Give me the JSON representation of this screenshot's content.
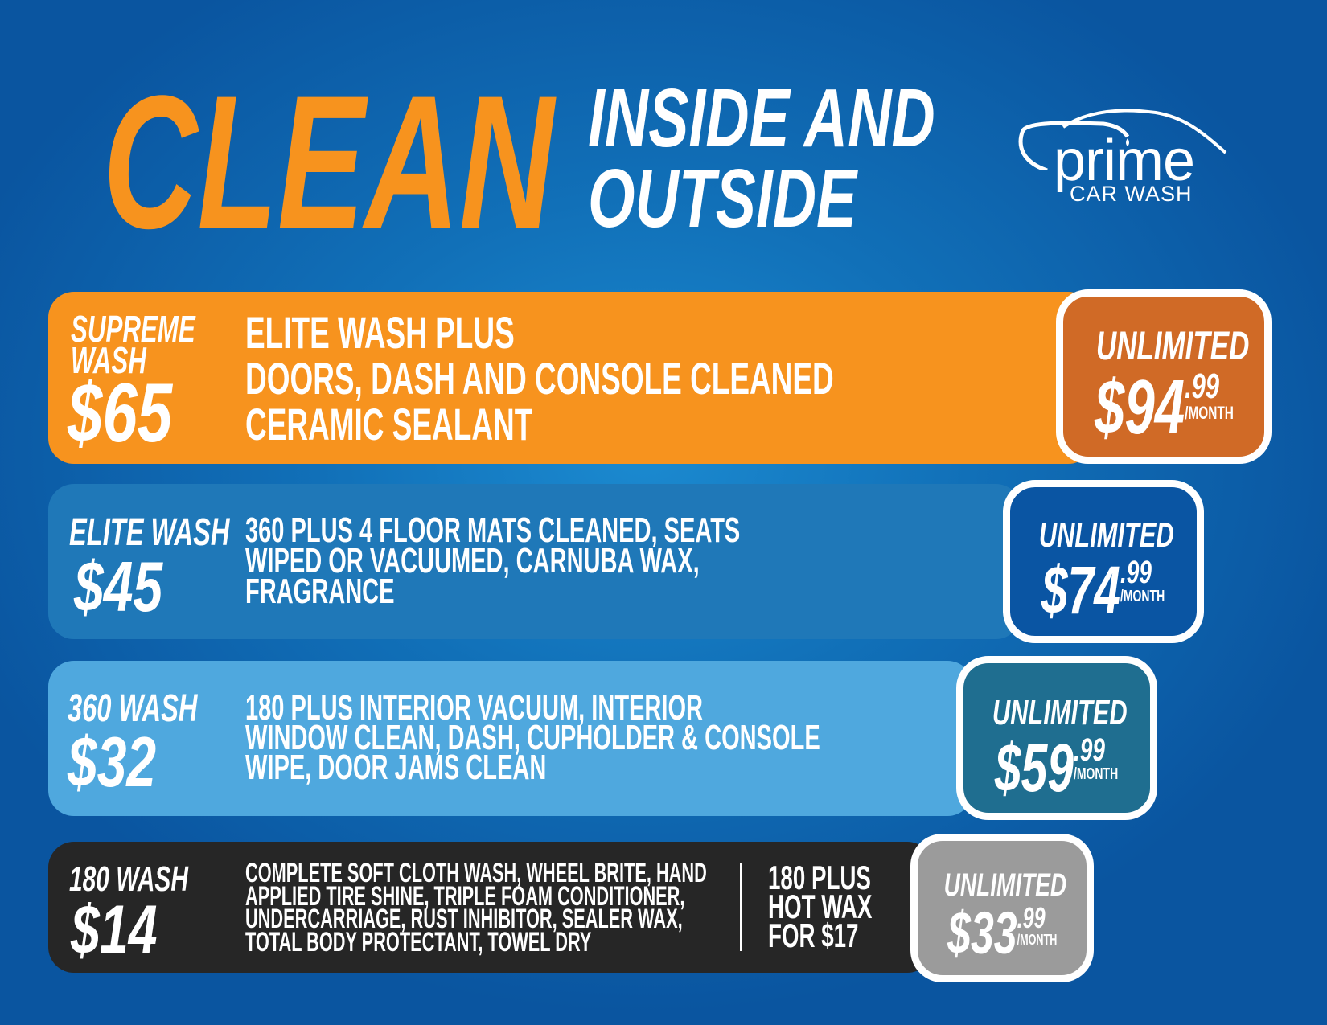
{
  "header": {
    "headline": "CLEAN",
    "subhead_line1": "INSIDE AND",
    "subhead_line2": "OUTSIDE"
  },
  "logo": {
    "word": "prime",
    "tagline": "CAR WASH",
    "icon": "car-silhouette-icon"
  },
  "colors": {
    "orange": "#f7931e",
    "badge_orange": "#d06a26",
    "elite_row": "#1f78b8",
    "elite_badge": "#0a55a3",
    "row_360": "#4fa8de",
    "badge_360": "#1f6e90",
    "row_180": "#262626",
    "badge_180": "#9b9b9b"
  },
  "packages": [
    {
      "name_line1": "SUPREME",
      "name_line2": "WASH",
      "price": "$65",
      "features": [
        "ELITE WASH PLUS",
        "DOORS, DASH AND CONSOLE CLEANED",
        "CERAMIC SEALANT"
      ],
      "unlimited": {
        "label": "UNLIMITED",
        "dollars": "$94",
        "cents": ".99",
        "period": "/MONTH"
      }
    },
    {
      "name_line1": "ELITE WASH",
      "price": "$45",
      "features": [
        "360 PLUS 4 FLOOR MATS CLEANED, SEATS",
        "WIPED OR VACUUMED, CARNUBA WAX,",
        "FRAGRANCE"
      ],
      "unlimited": {
        "label": "UNLIMITED",
        "dollars": "$74",
        "cents": ".99",
        "period": "/MONTH"
      }
    },
    {
      "name_line1": "360 WASH",
      "price": "$32",
      "features": [
        "180 PLUS INTERIOR VACUUM, INTERIOR",
        "WINDOW CLEAN, DASH, CUPHOLDER & CONSOLE",
        "WIPE, DOOR JAMS CLEAN"
      ],
      "unlimited": {
        "label": "UNLIMITED",
        "dollars": "$59",
        "cents": ".99",
        "period": "/MONTH"
      }
    },
    {
      "name_line1": "180 WASH",
      "price": "$14",
      "features": [
        "COMPLETE SOFT CLOTH WASH, WHEEL BRITE, HAND",
        "APPLIED TIRE SHINE, TRIPLE FOAM CONDITIONER,",
        "UNDERCARRIAGE, RUST INHIBITOR, SEALER WAX,",
        "TOTAL BODY PROTECTANT, TOWEL DRY"
      ],
      "addon": [
        "180 PLUS",
        "HOT WAX",
        "FOR $17"
      ],
      "unlimited": {
        "label": "UNLIMITED",
        "dollars": "$33",
        "cents": ".99",
        "period": "/MONTH"
      }
    }
  ]
}
